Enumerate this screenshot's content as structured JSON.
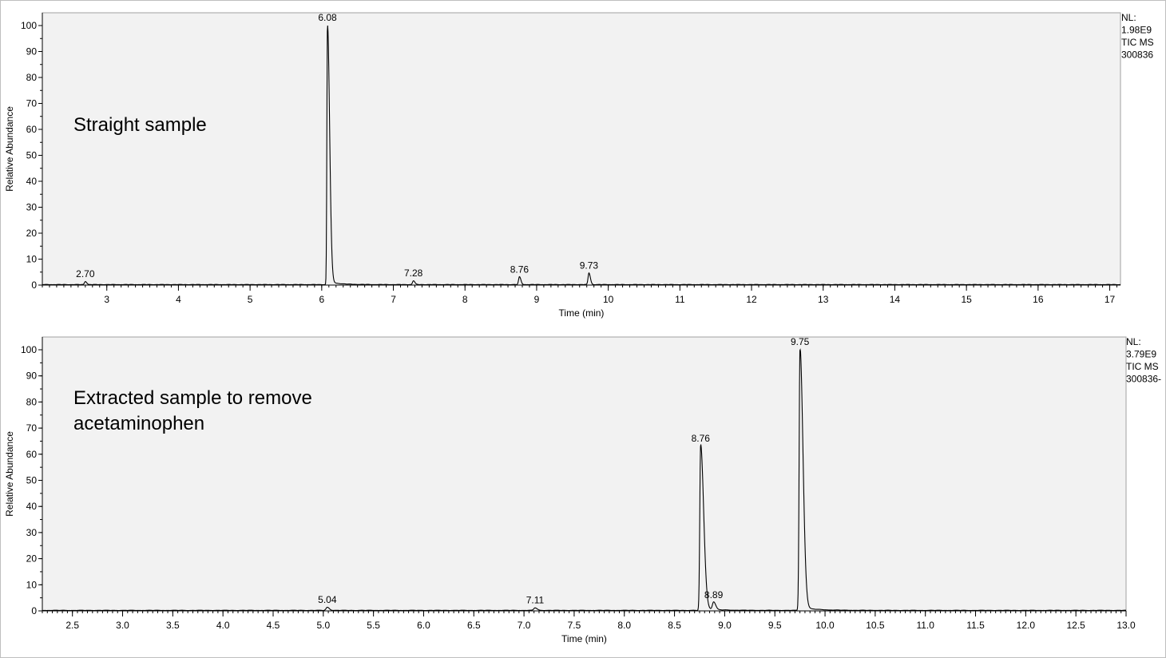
{
  "chart_data": [
    {
      "type": "line",
      "title": "",
      "annotation": "Straight sample",
      "side_info": [
        "NL:",
        "1.98E9",
        "TIC  MS",
        "300836"
      ],
      "xlabel": "Time (min)",
      "ylabel": "Relative Abundance",
      "xlim": [
        2.1,
        17.15
      ],
      "ylim": [
        0,
        100
      ],
      "xticks": [
        3,
        4,
        5,
        6,
        7,
        8,
        9,
        10,
        11,
        12,
        13,
        14,
        15,
        16,
        17
      ],
      "xtick_labels": [
        "3",
        "4",
        "5",
        "6",
        "7",
        "8",
        "9",
        "10",
        "11",
        "12",
        "13",
        "14",
        "15",
        "16",
        "17"
      ],
      "yticks": [
        0,
        10,
        20,
        30,
        40,
        50,
        60,
        70,
        80,
        90,
        100
      ],
      "ytick_labels": [
        "0",
        "10",
        "20",
        "30",
        "40",
        "50",
        "60",
        "70",
        "80",
        "90",
        "100"
      ],
      "peaks": [
        {
          "rt": 2.7,
          "label": "2.70",
          "height": 1.2
        },
        {
          "rt": 6.08,
          "label": "6.08",
          "height": 100
        },
        {
          "rt": 7.28,
          "label": "7.28",
          "height": 1.5
        },
        {
          "rt": 8.76,
          "label": "8.76",
          "height": 3
        },
        {
          "rt": 9.73,
          "label": "9.73",
          "height": 4.5
        }
      ],
      "grid": false
    },
    {
      "type": "line",
      "title": "",
      "annotation_lines": [
        "Extracted sample to remove",
        "acetaminophen"
      ],
      "side_info": [
        "NL:",
        "3.79E9",
        "TIC  MS",
        "300836-"
      ],
      "xlabel": "Time (min)",
      "ylabel": "Relative Abundance",
      "xlim": [
        2.2,
        13.0
      ],
      "ylim": [
        0,
        100
      ],
      "xticks": [
        2.5,
        3.0,
        3.5,
        4.0,
        4.5,
        5.0,
        5.5,
        6.0,
        6.5,
        7.0,
        7.5,
        8.0,
        8.5,
        9.0,
        9.5,
        10.0,
        10.5,
        11.0,
        11.5,
        12.0,
        12.5,
        13.0
      ],
      "xtick_labels": [
        "2.5",
        "3.0",
        "3.5",
        "4.0",
        "4.5",
        "5.0",
        "5.5",
        "6.0",
        "6.5",
        "7.0",
        "7.5",
        "8.0",
        "8.5",
        "9.0",
        "9.5",
        "10.0",
        "10.5",
        "11.0",
        "11.5",
        "12.0",
        "12.5",
        "13.0"
      ],
      "yticks": [
        0,
        10,
        20,
        30,
        40,
        50,
        60,
        70,
        80,
        90,
        100
      ],
      "ytick_labels": [
        "0",
        "10",
        "20",
        "30",
        "40",
        "50",
        "60",
        "70",
        "80",
        "90",
        "100"
      ],
      "peaks": [
        {
          "rt": 5.04,
          "label": "5.04",
          "height": 1.2
        },
        {
          "rt": 7.11,
          "label": "7.11",
          "height": 1
        },
        {
          "rt": 8.76,
          "label": "8.76",
          "height": 63
        },
        {
          "rt": 8.89,
          "label": "8.89",
          "height": 3
        },
        {
          "rt": 9.75,
          "label": "9.75",
          "height": 100
        }
      ],
      "grid": false
    }
  ]
}
